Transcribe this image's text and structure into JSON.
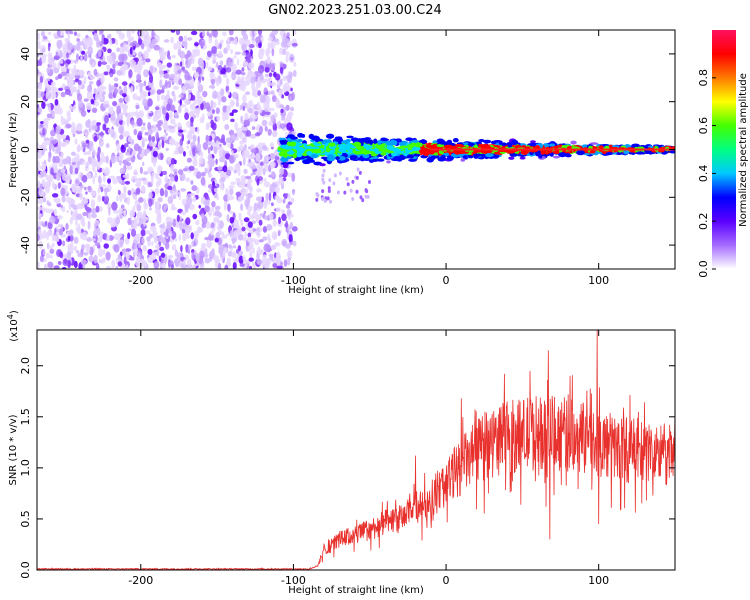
{
  "title": "GN02.2023.251.03.00.C24",
  "chart_data": [
    {
      "type": "heatmap",
      "xlabel": "Height of straight line (km)",
      "ylabel": "Frequency (Hz)",
      "xlim": [
        -268,
        150
      ],
      "ylim": [
        -50,
        50
      ],
      "xticks": [
        -200,
        -100,
        0,
        100
      ],
      "yticks": [
        -40,
        -20,
        0,
        20,
        40
      ],
      "noise_region_x": [
        -268,
        -103
      ],
      "signal_onset_x": -108,
      "signal_center_hz": 0,
      "colorbar": {
        "label": "Normalized spectral amplitude",
        "range": [
          0,
          1
        ],
        "ticks": [
          0.0,
          0.2,
          0.4,
          0.6,
          0.8
        ],
        "colors": [
          "#ffffff",
          "#a56bff",
          "#5a00ff",
          "#0000ff",
          "#00c8ff",
          "#00ff80",
          "#44ff00",
          "#ffff00",
          "#ff7a00",
          "#ff0000",
          "#ff1060"
        ]
      }
    },
    {
      "type": "line",
      "xlabel": "Height of straight line (km)",
      "ylabel": "SNR (10 * v/v)",
      "yscale_label": "(x10",
      "yscale_exp": "4",
      "yscale_close": ")",
      "xlim": [
        -268,
        150
      ],
      "ylim": [
        0,
        2.35
      ],
      "xticks": [
        -200,
        -100,
        0,
        100
      ],
      "yticks": [
        0.0,
        0.5,
        1.0,
        1.5,
        2.0
      ],
      "series": [
        {
          "color": "#e8302c",
          "envelope": {
            "x": [
              -268,
              -90,
              -84,
              -80,
              -70,
              -60,
              -50,
              -40,
              -30,
              -20,
              -10,
              0,
              10,
              20,
              30,
              40,
              50,
              60,
              70,
              80,
              90,
              100,
              110,
              120,
              130,
              140,
              150
            ],
            "y": [
              0.01,
              0.01,
              0.04,
              0.2,
              0.3,
              0.34,
              0.4,
              0.46,
              0.5,
              0.6,
              0.7,
              0.85,
              1.02,
              1.15,
              1.25,
              1.3,
              1.32,
              1.35,
              1.35,
              1.32,
              1.3,
              1.25,
              1.2,
              1.18,
              1.15,
              1.13,
              1.12
            ]
          },
          "peaks": [
            {
              "x": -20,
              "y": 1.12
            },
            {
              "x": -14,
              "y": 0.95
            },
            {
              "x": 10,
              "y": 1.68
            },
            {
              "x": 40,
              "y": 1.65
            },
            {
              "x": 55,
              "y": 1.95
            },
            {
              "x": 67,
              "y": 2.15
            },
            {
              "x": 68,
              "y": 0.3
            },
            {
              "x": 80,
              "y": 1.72
            },
            {
              "x": 90,
              "y": 1.62
            },
            {
              "x": 99,
              "y": 2.35
            },
            {
              "x": 100,
              "y": 0.45
            }
          ]
        }
      ]
    }
  ]
}
